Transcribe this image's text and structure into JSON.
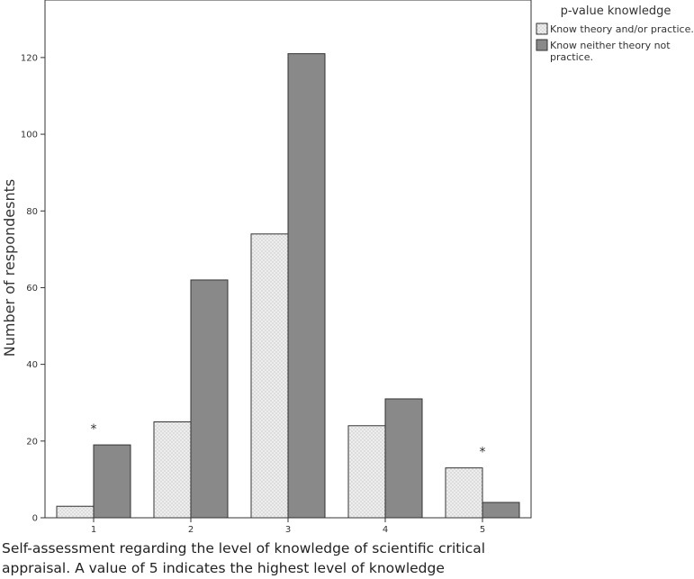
{
  "chart_data": {
    "type": "bar",
    "categories": [
      "1",
      "2",
      "3",
      "4",
      "5"
    ],
    "series": [
      {
        "name": "Know theory and/or practice.",
        "values": [
          3,
          25,
          74,
          24,
          13
        ],
        "color": "#eeeeee",
        "pattern": "dots"
      },
      {
        "name": "Know neither theory not practice.",
        "values": [
          19,
          62,
          121,
          31,
          4
        ],
        "color": "#898989"
      }
    ],
    "ylabel": "Number of respondesnts",
    "xlabel_lines": [
      "Self-assessment regarding the level of knowledge of scientific critical",
      "appraisal. A value of 5 indicates the highest level of knowledge"
    ],
    "ylim": [
      0,
      135
    ],
    "yticks": [
      0,
      20,
      40,
      60,
      80,
      100,
      120
    ],
    "legend": {
      "title": "p-value knowledge",
      "position": "top-right",
      "entries": [
        {
          "lines": [
            "Know theory and/or practice."
          ]
        },
        {
          "lines": [
            "Know neither theory not",
            "practice."
          ]
        }
      ]
    },
    "annotations": [
      {
        "category": "1",
        "text": "*",
        "y": 24
      },
      {
        "category": "5",
        "text": "*",
        "y": 18
      }
    ],
    "grid": false
  }
}
